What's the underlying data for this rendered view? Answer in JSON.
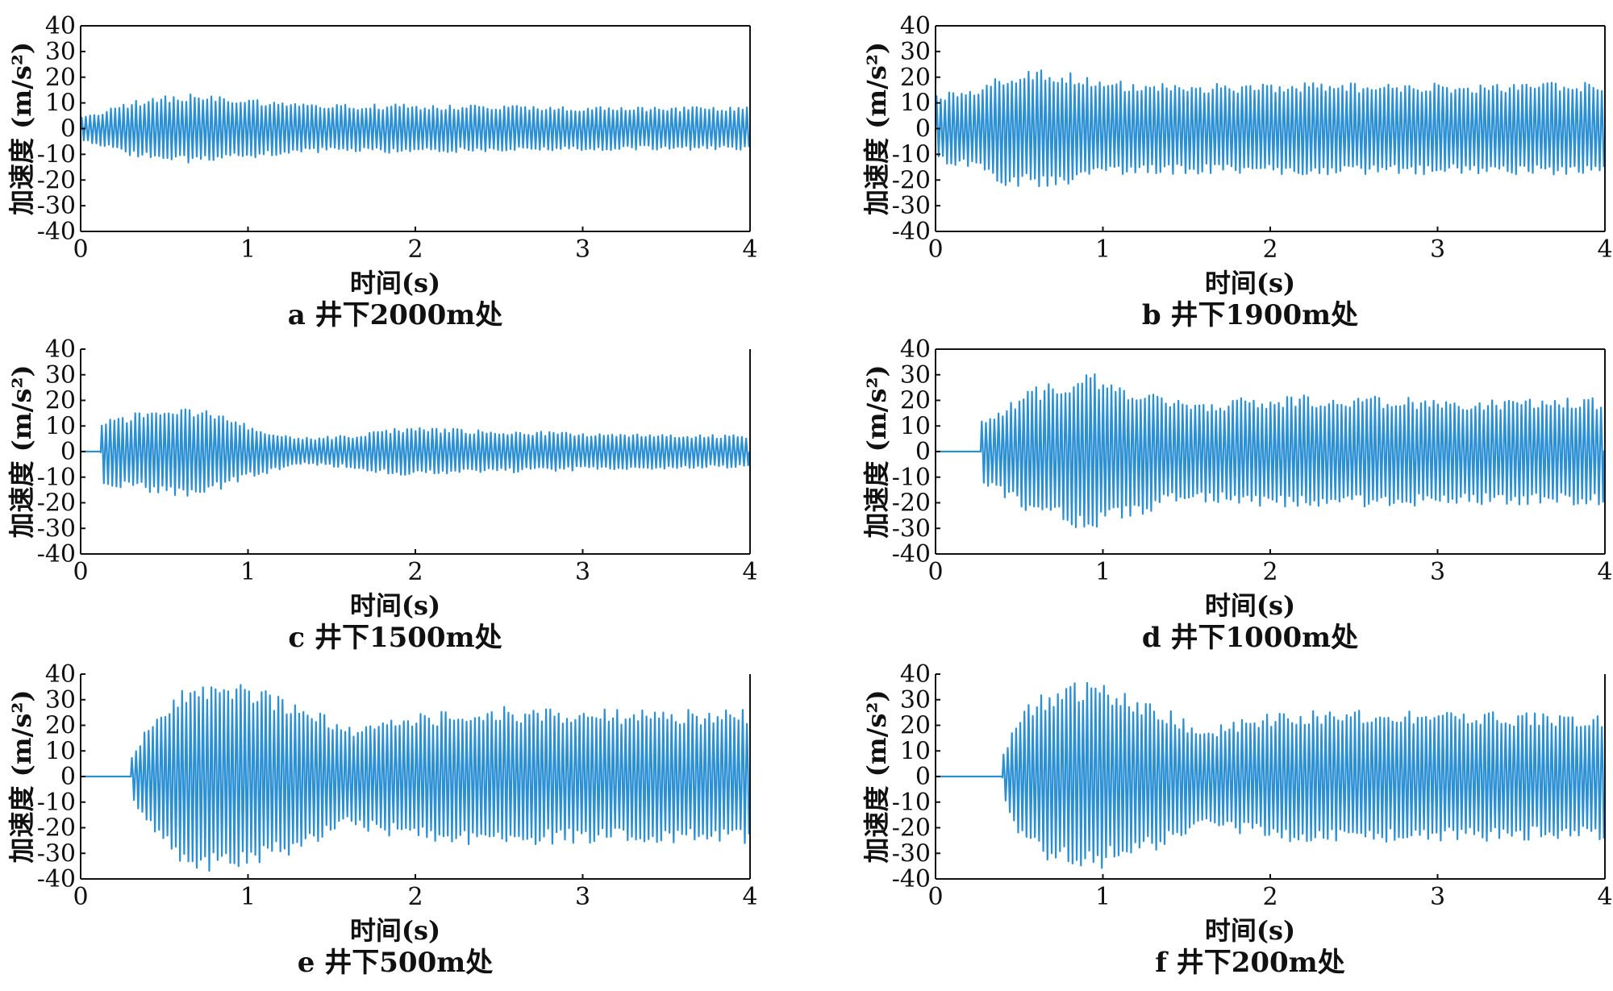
{
  "chart_data": [
    {
      "type": "line",
      "panel": "a",
      "caption": "a 井下2000m处",
      "xlabel": "时间(s)",
      "ylabel": "加速度 (m/s²)",
      "xlim": [
        0,
        4
      ],
      "ylim": [
        -40,
        40
      ],
      "xticks": [
        "0",
        "1",
        "2",
        "3",
        "4"
      ],
      "yticks": [
        "40",
        "30",
        "20",
        "10",
        "0",
        "-10",
        "-20",
        "-30",
        "-40"
      ],
      "color": "#2b8fd4",
      "onset_s": 0.0,
      "envelope": {
        "t": [
          0,
          0.1,
          0.3,
          0.6,
          1.0,
          1.4,
          2.0,
          3.0,
          4.0
        ],
        "amp": [
          5,
          6,
          10,
          13,
          11,
          9,
          9,
          8,
          8
        ]
      },
      "cycles_per_s": 40
    },
    {
      "type": "line",
      "panel": "b",
      "caption": "b 井下1900m处",
      "xlabel": "时间(s)",
      "ylabel": "加速度 (m/s²)",
      "xlim": [
        0,
        4
      ],
      "ylim": [
        -40,
        40
      ],
      "xticks": [
        "0",
        "1",
        "2",
        "3",
        "4"
      ],
      "yticks": [
        "40",
        "30",
        "20",
        "10",
        "0",
        "-10",
        "-20",
        "-30",
        "-40"
      ],
      "color": "#2b8fd4",
      "onset_s": 0.0,
      "envelope": {
        "t": [
          0,
          0.2,
          0.4,
          0.7,
          1.0,
          1.5,
          2.0,
          3.0,
          4.0
        ],
        "amp": [
          13,
          14,
          21,
          22,
          18,
          17,
          17,
          17,
          17
        ]
      },
      "cycles_per_s": 40
    },
    {
      "type": "line",
      "panel": "c",
      "caption": "c 井下1500m处",
      "xlabel": "时间(s)",
      "ylabel": "加速度 (m/s²)",
      "xlim": [
        0,
        4
      ],
      "ylim": [
        -40,
        40
      ],
      "xticks": [
        "0",
        "1",
        "2",
        "3",
        "4"
      ],
      "yticks": [
        "40",
        "30",
        "20",
        "10",
        "0",
        "-10",
        "-20",
        "-30",
        "-40"
      ],
      "color": "#2b8fd4",
      "onset_s": 0.12,
      "envelope": {
        "t": [
          0.12,
          0.3,
          0.6,
          0.8,
          1.0,
          1.3,
          1.6,
          1.9,
          2.5,
          3.0,
          4.0
        ],
        "amp": [
          12,
          14,
          17,
          15,
          10,
          5,
          6,
          9,
          8,
          7,
          6
        ]
      },
      "cycles_per_s": 40
    },
    {
      "type": "line",
      "panel": "d",
      "caption": "d 井下1000m处",
      "xlabel": "时间(s)",
      "ylabel": "加速度 (m/s²)",
      "xlim": [
        0,
        4
      ],
      "ylim": [
        -40,
        40
      ],
      "xticks": [
        "0",
        "1",
        "2",
        "3",
        "4"
      ],
      "yticks": [
        "40",
        "30",
        "20",
        "10",
        "0",
        "-10",
        "-20",
        "-30",
        "-40"
      ],
      "color": "#2b8fd4",
      "onset_s": 0.27,
      "envelope": {
        "t": [
          0.27,
          0.4,
          0.6,
          0.9,
          1.2,
          1.5,
          2.0,
          2.5,
          3.0,
          4.0
        ],
        "amp": [
          12,
          17,
          24,
          30,
          24,
          18,
          21,
          21,
          20,
          20
        ]
      },
      "cycles_per_s": 40
    },
    {
      "type": "line",
      "panel": "e",
      "caption": "e 井下500m处",
      "xlabel": "时间(s)",
      "ylabel": "加速度 (m/s²)",
      "xlim": [
        0,
        4
      ],
      "ylim": [
        -40,
        40
      ],
      "xticks": [
        "0",
        "1",
        "2",
        "3",
        "4"
      ],
      "yticks": [
        "40",
        "30",
        "20",
        "10",
        "0",
        "-10",
        "-20",
        "-30",
        "-40"
      ],
      "color": "#2b8fd4",
      "onset_s": 0.3,
      "envelope": {
        "t": [
          0.3,
          0.4,
          0.6,
          0.8,
          1.0,
          1.3,
          1.6,
          2.0,
          2.5,
          3.0,
          4.0
        ],
        "amp": [
          8,
          20,
          32,
          37,
          34,
          28,
          19,
          24,
          26,
          25,
          25
        ]
      },
      "cycles_per_s": 40
    },
    {
      "type": "line",
      "panel": "f",
      "caption": "f 井下200m处",
      "xlabel": "时间(s)",
      "ylabel": "加速度 (m/s²)",
      "xlim": [
        0,
        4
      ],
      "ylim": [
        -40,
        40
      ],
      "xticks": [
        "0",
        "1",
        "2",
        "3",
        "4"
      ],
      "yticks": [
        "40",
        "30",
        "20",
        "10",
        "0",
        "-10",
        "-20",
        "-30",
        "-40"
      ],
      "color": "#2b8fd4",
      "onset_s": 0.4,
      "envelope": {
        "t": [
          0.4,
          0.5,
          0.7,
          0.9,
          1.1,
          1.3,
          1.6,
          2.0,
          2.5,
          3.0,
          4.0
        ],
        "amp": [
          8,
          25,
          33,
          36,
          32,
          28,
          18,
          24,
          25,
          24,
          24
        ]
      },
      "cycles_per_s": 40
    }
  ]
}
